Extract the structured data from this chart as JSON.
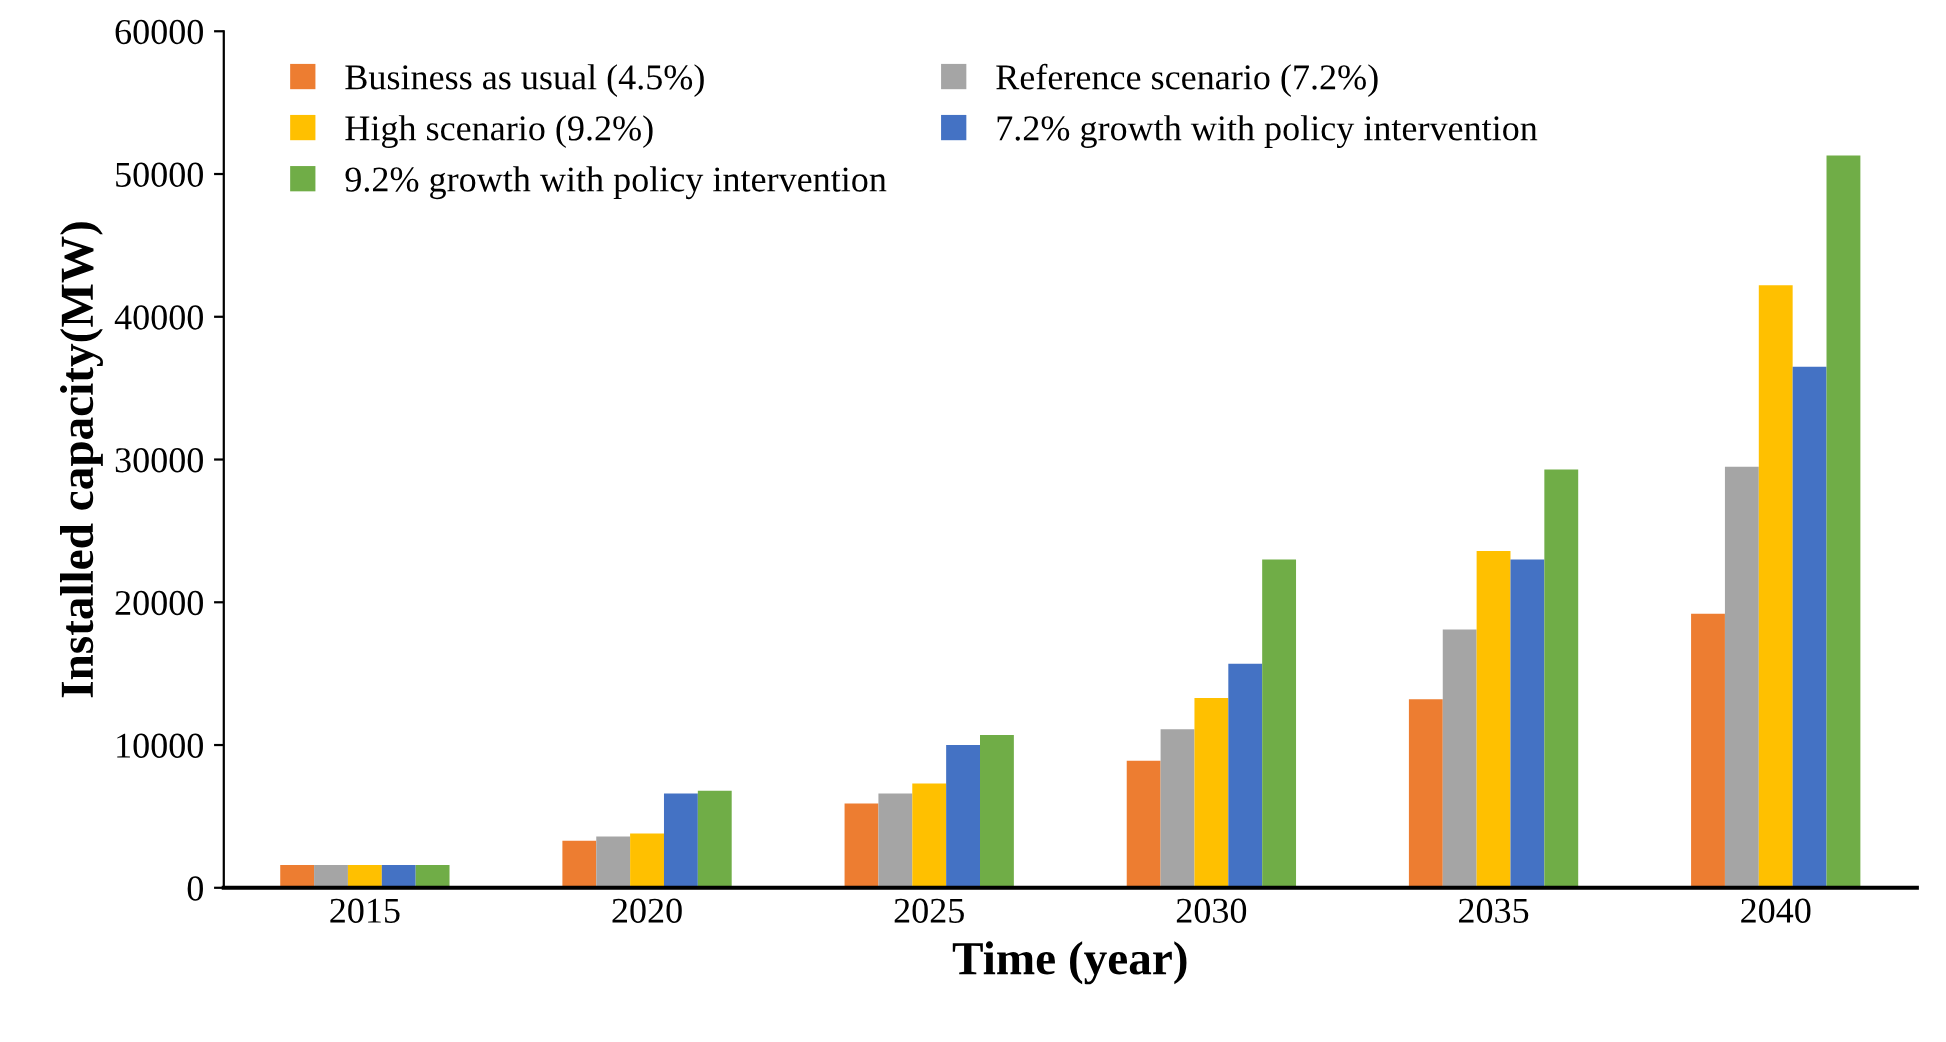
{
  "chart_data": {
    "type": "bar",
    "xlabel": "Time (year)",
    "ylabel": "Installed capacity(MW)",
    "categories": [
      "2015",
      "2020",
      "2025",
      "2030",
      "2035",
      "2040"
    ],
    "series": [
      {
        "name": "Business as usual (4.5%)",
        "color": "#ed7d31",
        "values": [
          1600,
          3300,
          5900,
          8900,
          13200,
          19200
        ]
      },
      {
        "name": "Reference scenario (7.2%)",
        "color": "#a5a5a5",
        "values": [
          1600,
          3600,
          6600,
          11100,
          18100,
          29500
        ]
      },
      {
        "name": "High scenario (9.2%)",
        "color": "#ffc000",
        "values": [
          1600,
          3800,
          7300,
          13300,
          23600,
          42200
        ]
      },
      {
        "name": "7.2% growth with policy intervention",
        "color": "#4472c4",
        "values": [
          1600,
          6600,
          10000,
          15700,
          23000,
          36500
        ]
      },
      {
        "name": "9.2% growth with policy intervention",
        "color": "#70ad47",
        "values": [
          1600,
          6800,
          10700,
          23000,
          29300,
          51300
        ]
      }
    ],
    "ylim": [
      0,
      60000
    ],
    "yticks": [
      0,
      10000,
      20000,
      30000,
      40000,
      50000,
      60000
    ],
    "grid": false,
    "legend": "top left"
  }
}
